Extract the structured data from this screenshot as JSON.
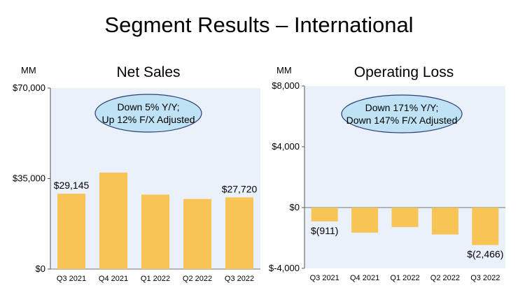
{
  "title": "Segment Results – International",
  "chart_data": [
    {
      "type": "bar",
      "title": "Net Sales",
      "unit_label": "MM",
      "categories": [
        "Q3 2021",
        "Q4 2021",
        "Q1 2022",
        "Q2 2022",
        "Q3 2022"
      ],
      "values": [
        29145,
        37300,
        28800,
        27100,
        27720
      ],
      "ylim": [
        0,
        70000
      ],
      "yticks": [
        0,
        35000,
        70000
      ],
      "ytick_labels": [
        "$0",
        "$35,000",
        "$70,000"
      ],
      "data_labels": [
        {
          "index": 0,
          "text": "$29,145"
        },
        {
          "index": 4,
          "text": "$27,720"
        }
      ],
      "annotation": [
        "Down 5% Y/Y;",
        "Up 12% F/X Adjusted"
      ],
      "colors": {
        "bar": "#F9C456",
        "plot_bg": "#EAF1FB",
        "bubble": "#BFE3F5",
        "bubble_border": "#2C3E73"
      }
    },
    {
      "type": "bar",
      "title": "Operating Loss",
      "unit_label": "MM",
      "categories": [
        "Q3 2021",
        "Q4 2021",
        "Q1 2022",
        "Q2 2022",
        "Q3 2022"
      ],
      "values": [
        -911,
        -1650,
        -1280,
        -1770,
        -2466
      ],
      "ylim": [
        -4000,
        8000
      ],
      "yticks": [
        -4000,
        0,
        4000,
        8000
      ],
      "ytick_labels": [
        "$-4,000",
        "$0",
        "$4,000",
        "$8,000"
      ],
      "data_labels": [
        {
          "index": 0,
          "text": "$(911)"
        },
        {
          "index": 4,
          "text": "$(2,466)"
        }
      ],
      "annotation": [
        "Down 171% Y/Y;",
        "Down 147% F/X Adjusted"
      ],
      "colors": {
        "bar": "#F9C456",
        "plot_bg": "#EAF1FB",
        "bubble": "#BFE3F5",
        "bubble_border": "#2C3E73"
      }
    }
  ]
}
